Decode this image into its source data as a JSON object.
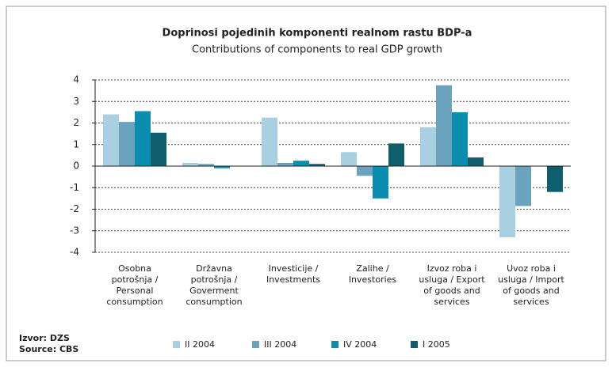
{
  "chart_data": {
    "type": "bar",
    "title": "Doprinosi pojedinih komponenti realnom rastu BDP-a",
    "subtitle": "Contributions of components to real GDP growth",
    "categories": [
      "Osobna\npotrošnja /\nPersonal\nconsumption",
      "Državna\npotrošnja /\nGoverment\nconsumption",
      "Investicije /\nInvestments",
      "Zalihe /\nInvestories",
      "Izvoz roba i\nusluga / Export\nof goods and\nservices",
      "Uvoz roba i\nusluga / Import\nof goods and\nservices"
    ],
    "series": [
      {
        "name": "II 2004",
        "color": "#a9d0e1",
        "values": [
          2.4,
          0.15,
          2.25,
          0.65,
          1.8,
          -3.3
        ]
      },
      {
        "name": "III 2004",
        "color": "#6aa3bd",
        "values": [
          2.05,
          0.1,
          0.15,
          -0.45,
          3.75,
          -1.85
        ]
      },
      {
        "name": "IV 2004",
        "color": "#0b8db0",
        "values": [
          2.55,
          -0.1,
          0.25,
          -1.5,
          2.5,
          null
        ]
      },
      {
        "name": "I 2005",
        "color": "#0e5e6e",
        "values": [
          1.55,
          0,
          0.1,
          1.05,
          0.4,
          -1.2
        ]
      }
    ],
    "ylim": [
      -4,
      4
    ],
    "yticks": [
      -4,
      -3,
      -2,
      -1,
      0,
      1,
      2,
      3,
      4
    ],
    "grid": true,
    "source": [
      "Izvor: DZS",
      "Source: CBS"
    ]
  }
}
